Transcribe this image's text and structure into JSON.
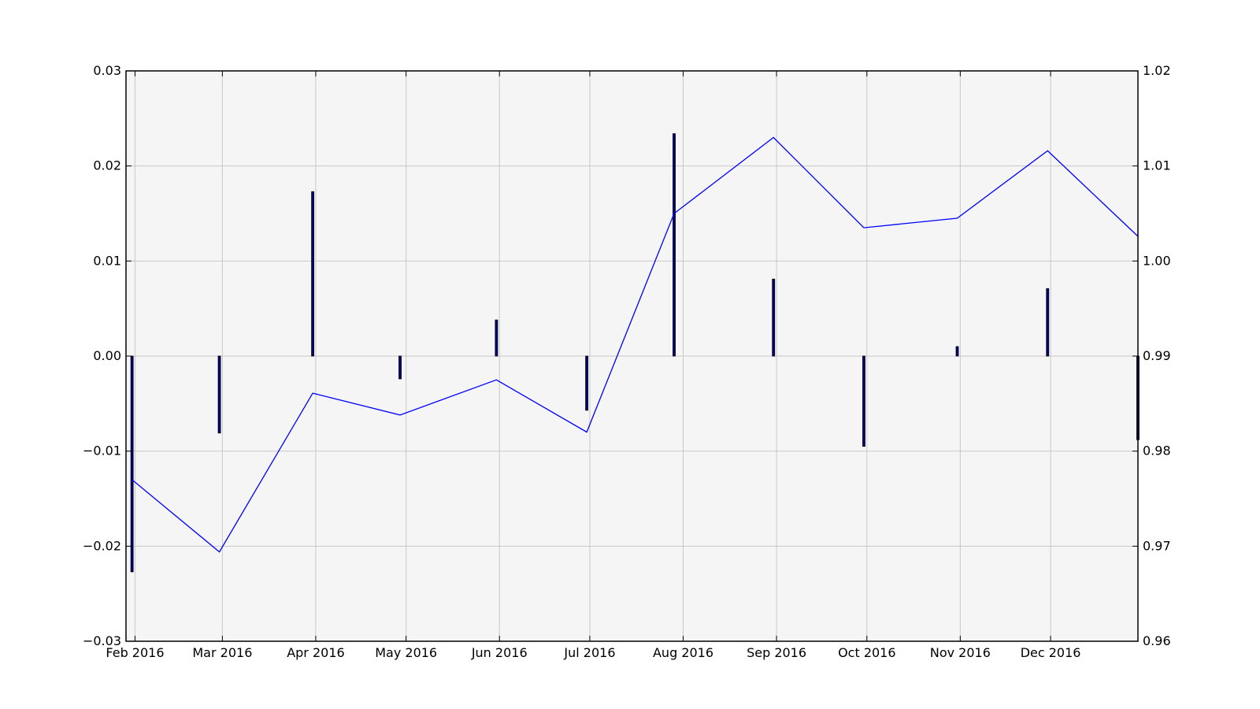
{
  "chart_data": {
    "type": "bar",
    "title": "",
    "xlabel": "",
    "ylabel": "",
    "grid": true,
    "x_ticks": [
      "2016-02-01",
      "2016-03-01",
      "2016-04-01",
      "2016-05-01",
      "2016-06-01",
      "2016-07-01",
      "2016-08-01",
      "2016-09-01",
      "2016-10-01",
      "2016-11-01",
      "2016-12-01"
    ],
    "x_tick_labels": [
      "Feb 2016",
      "Mar 2016",
      "Apr 2016",
      "May 2016",
      "Jun 2016",
      "Jul 2016",
      "Aug 2016",
      "Sep 2016",
      "Oct 2016",
      "Nov 2016",
      "Dec 2016"
    ],
    "x": [
      "2016-01-31",
      "2016-02-29",
      "2016-03-31",
      "2016-04-29",
      "2016-05-31",
      "2016-06-30",
      "2016-07-29",
      "2016-08-31",
      "2016-09-30",
      "2016-10-31",
      "2016-11-30",
      "2016-12-30"
    ],
    "xlim": [
      "2016-01-29",
      "2016-12-30"
    ],
    "series": [
      {
        "axis": "left",
        "type": "bar",
        "color": "#000080",
        "values": [
          -0.0227,
          -0.0081,
          0.0173,
          -0.0024,
          0.0038,
          -0.0057,
          0.0234,
          0.0081,
          -0.0095,
          0.001,
          0.0071,
          -0.0088
        ]
      },
      {
        "axis": "right",
        "type": "line",
        "color": "#0000ff",
        "values": [
          0.977,
          0.9694,
          0.9861,
          0.9838,
          0.9875,
          0.982,
          1.005,
          1.013,
          1.0035,
          1.0045,
          1.0116,
          1.0026
        ]
      }
    ],
    "y_left": {
      "ylim": [
        -0.03,
        0.03
      ],
      "ticks": [
        -0.03,
        -0.02,
        -0.01,
        0.0,
        0.01,
        0.02,
        0.03
      ],
      "tick_labels": [
        "−0.03",
        "−0.02",
        "−0.01",
        "0.00",
        "0.01",
        "0.02",
        "0.03"
      ]
    },
    "y_right": {
      "ylim": [
        0.96,
        1.02
      ],
      "ticks": [
        0.96,
        0.97,
        0.98,
        0.99,
        1.0,
        1.01,
        1.02
      ],
      "tick_labels": [
        "0.96",
        "0.97",
        "0.98",
        "0.99",
        "1.00",
        "1.01",
        "1.02"
      ]
    },
    "colors": {
      "plot_background": "#f5f5f5",
      "grid": "#c8c8c8",
      "bar": "#000080",
      "line": "#0000ff"
    }
  }
}
